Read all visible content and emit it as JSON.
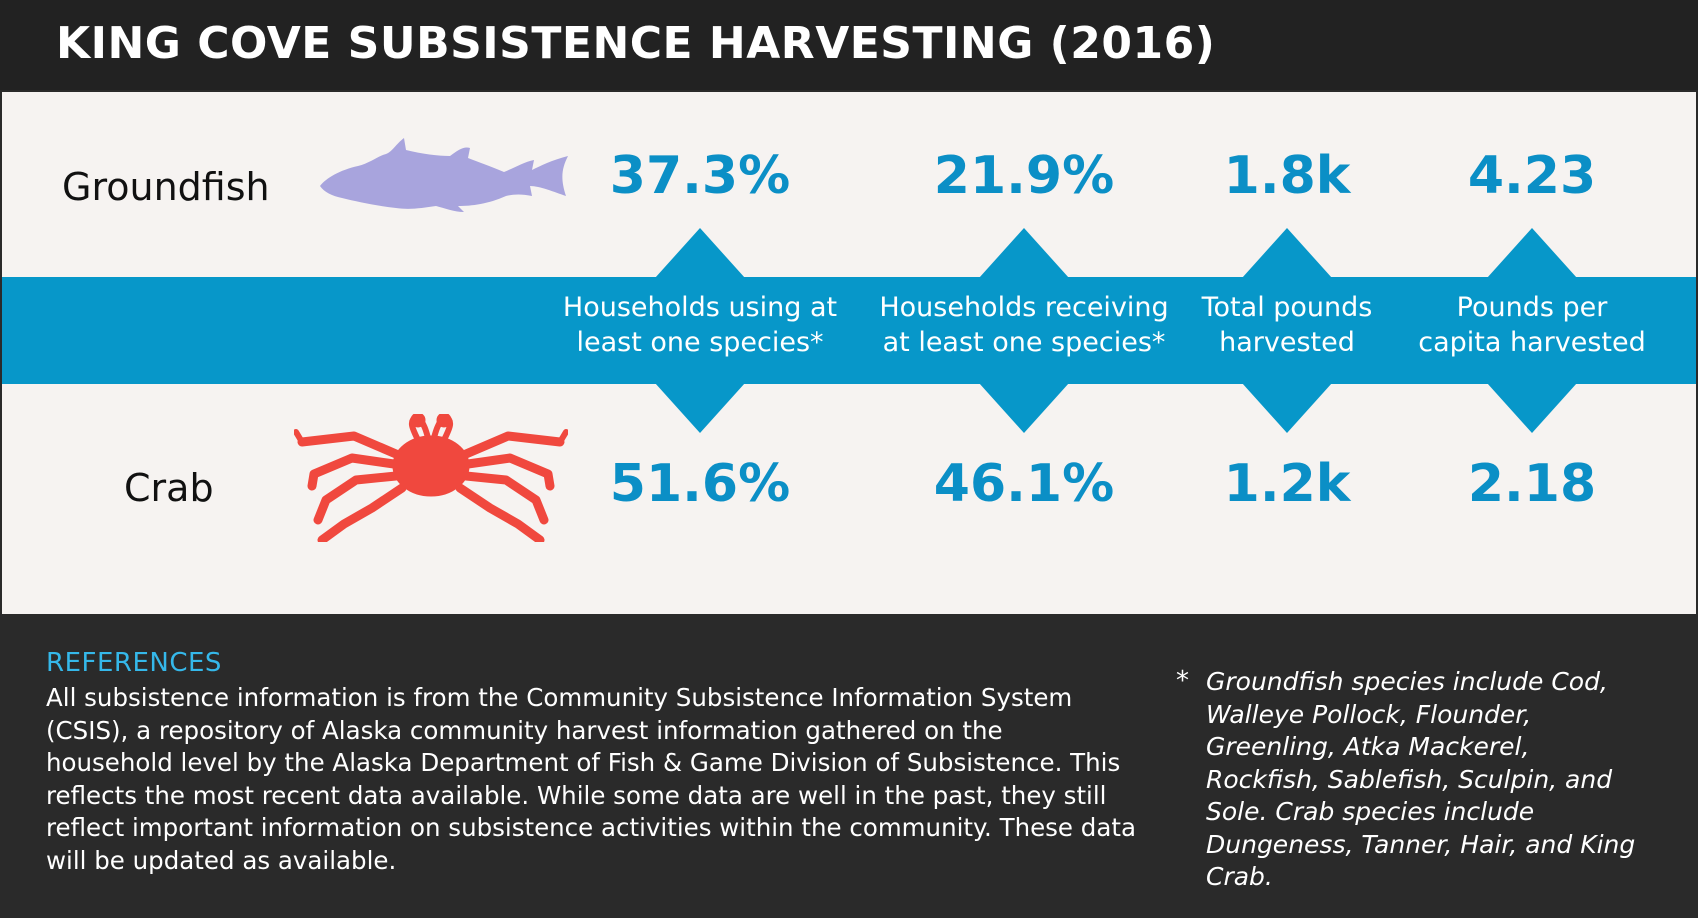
{
  "header": {
    "title": "KING COVE SUBSISTENCE HARVESTING (2016)"
  },
  "rows": {
    "top_label": "Groundfish",
    "bottom_label": "Crab",
    "top_icon": "fish-icon",
    "bottom_icon": "crab-icon"
  },
  "colors": {
    "accent_blue": "#0797c9",
    "value_blue": "#0b8fc6",
    "fish": "#a8a4dd",
    "crab": "#f0483e",
    "reference_heading": "#35b8ea"
  },
  "metrics": [
    {
      "caption": "Households using at\nleast one species*",
      "groundfish": "37.3%",
      "crab": "51.6%"
    },
    {
      "caption": "Households receiving\nat least one species*",
      "groundfish": "21.9%",
      "crab": "46.1%"
    },
    {
      "caption": "Total pounds\nharvested",
      "groundfish": "1.8k",
      "crab": "1.2k"
    },
    {
      "caption": "Pounds per\ncapita harvested",
      "groundfish": "4.23",
      "crab": "2.18"
    }
  ],
  "references": {
    "heading": "REFERENCES",
    "body": "All subsistence information is from the Community Subsistence Information System (CSIS), a repository of Alaska community harvest information gathered on the household level by the Alaska Department of Fish & Game Division of Subsistence. This reflects the most recent data available. While some data are well in the past, they still reflect important information on subsistence activities within the community. These data will be updated as available."
  },
  "footnote": {
    "marker": "*",
    "text": "Groundfish species include Cod, Walleye Pollock, Flounder, Greenling, Atka Mackerel, Rockfish, Sablefish, Sculpin, and Sole. Crab species include Dungeness, Tanner, Hair, and King Crab."
  }
}
